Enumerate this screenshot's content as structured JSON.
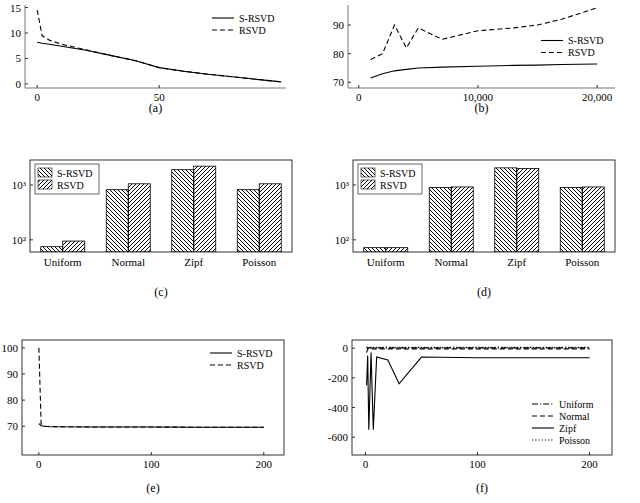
{
  "chart_data": [
    {
      "type": "line",
      "title": "(a)",
      "x": [
        0,
        2,
        5,
        10,
        20,
        30,
        40,
        50,
        60,
        70,
        80,
        90,
        100
      ],
      "xlim": [
        -5,
        102
      ],
      "xticks": [
        0,
        50
      ],
      "ylim": [
        -0.8,
        15.5
      ],
      "yticks": [
        0,
        5,
        10,
        15
      ],
      "grid": false,
      "legend": "upper right",
      "series": [
        {
          "name": "S-RSVD",
          "color": "#000000",
          "line_style": "solid",
          "values": [
            8.2,
            8.0,
            7.8,
            7.4,
            6.6,
            5.6,
            4.6,
            3.2,
            2.5,
            1.9,
            1.4,
            0.9,
            0.4
          ]
        },
        {
          "name": "RSVD",
          "color": "#000000",
          "line_style": "dashed",
          "values": [
            14.5,
            9.5,
            8.6,
            7.8,
            6.7,
            5.6,
            4.6,
            3.2,
            2.5,
            1.9,
            1.4,
            0.9,
            0.4
          ]
        }
      ]
    },
    {
      "type": "line",
      "title": "(b)",
      "x": [
        1000,
        2000,
        3000,
        4000,
        5000,
        7000,
        10000,
        13000,
        15000,
        17000,
        20000
      ],
      "xlim": [
        -900,
        21500
      ],
      "xticks": [
        0,
        {
          "value": 10000,
          "label": "10,000"
        },
        {
          "value": 20000,
          "label": "20,000"
        }
      ],
      "ylim": [
        68,
        97
      ],
      "yticks": [
        70,
        80,
        90
      ],
      "grid": false,
      "legend": "right",
      "series": [
        {
          "name": "S-RSVD",
          "color": "#000000",
          "line_style": "solid",
          "values": [
            71.5,
            73,
            74,
            74.5,
            75,
            75.3,
            75.6,
            75.9,
            76,
            76.2,
            76.4
          ]
        },
        {
          "name": "RSVD",
          "color": "#000000",
          "line_style": "dashed",
          "values": [
            78,
            80,
            90,
            82,
            89,
            85,
            88,
            89,
            90,
            92,
            96
          ]
        }
      ]
    },
    {
      "type": "bar",
      "title": "(c)",
      "categories": [
        "Uniform",
        "Normal",
        "Zipf",
        "Poisson"
      ],
      "log": "y",
      "ylim": [
        60,
        2850
      ],
      "yticks": [
        {
          "value": 100,
          "label": "10²"
        },
        {
          "value": 1000,
          "label": "10³"
        }
      ],
      "grid": false,
      "legend": "upper left",
      "series": [
        {
          "name": "S-RSVD",
          "color": "#000000",
          "values": [
            75,
            820,
            1900,
            820
          ]
        },
        {
          "name": "RSVD",
          "color": "#000000",
          "values": [
            95,
            1050,
            2200,
            1050
          ]
        }
      ]
    },
    {
      "type": "bar",
      "title": "(d)",
      "categories": [
        "Uniform",
        "Normal",
        "Zipf",
        "Poisson"
      ],
      "log": "y",
      "ylim": [
        60,
        2850
      ],
      "yticks": [
        {
          "value": 100,
          "label": "10²"
        },
        {
          "value": 1000,
          "label": "10³"
        }
      ],
      "grid": false,
      "legend": "upper left",
      "series": [
        {
          "name": "S-RSVD",
          "color": "#000000",
          "values": [
            72,
            900,
            2050,
            900
          ]
        },
        {
          "name": "RSVD",
          "color": "#000000",
          "values": [
            72,
            920,
            2000,
            920
          ]
        }
      ]
    },
    {
      "type": "line",
      "title": "(e)",
      "x": [
        0,
        2,
        5,
        10,
        50,
        100,
        150,
        200
      ],
      "xlim": [
        -15,
        218
      ],
      "xticks": [
        0,
        100,
        200
      ],
      "ylim": [
        59,
        103
      ],
      "yticks": [
        70,
        80,
        90,
        100
      ],
      "grid": false,
      "legend": "upper right",
      "series": [
        {
          "name": "S-RSVD",
          "color": "#000000",
          "line_style": "solid",
          "values": [
            71,
            70.2,
            70,
            69.8,
            69.7,
            69.7,
            69.6,
            69.6
          ]
        },
        {
          "name": "RSVD",
          "color": "#000000",
          "line_style": "dashed",
          "values": [
            100,
            71,
            70,
            69.9,
            69.7,
            69.7,
            69.6,
            69.6
          ]
        }
      ]
    },
    {
      "type": "line",
      "title": "(f)",
      "x": [
        1,
        2,
        3,
        5,
        7,
        10,
        20,
        30,
        50,
        100,
        150,
        200
      ],
      "xlim": [
        -12,
        220
      ],
      "xticks": [
        0,
        100,
        200
      ],
      "ylim": [
        -720,
        55
      ],
      "yticks": [
        -600,
        -400,
        -200,
        0
      ],
      "grid": false,
      "legend": "lower right",
      "series": [
        {
          "name": "Uniform",
          "color": "#000000",
          "line_style": "dashdot",
          "values": [
            2,
            2,
            2,
            2,
            2,
            2,
            2,
            2,
            2,
            2,
            2,
            2
          ]
        },
        {
          "name": "Normal",
          "color": "#000000",
          "line_style": "dashed",
          "values": [
            -30,
            -5,
            -5,
            -5,
            -5,
            -5,
            -5,
            -5,
            -5,
            -5,
            -5,
            -5
          ]
        },
        {
          "name": "Zipf",
          "color": "#000000",
          "line_style": "solid",
          "values": [
            -250,
            -50,
            -550,
            -30,
            -550,
            -60,
            -80,
            -240,
            -60,
            -65,
            -65,
            -65
          ]
        },
        {
          "name": "Poisson",
          "color": "#000000",
          "line_style": "dotted",
          "values": [
            5,
            5,
            5,
            5,
            5,
            5,
            5,
            5,
            5,
            5,
            5,
            5
          ]
        }
      ]
    }
  ]
}
